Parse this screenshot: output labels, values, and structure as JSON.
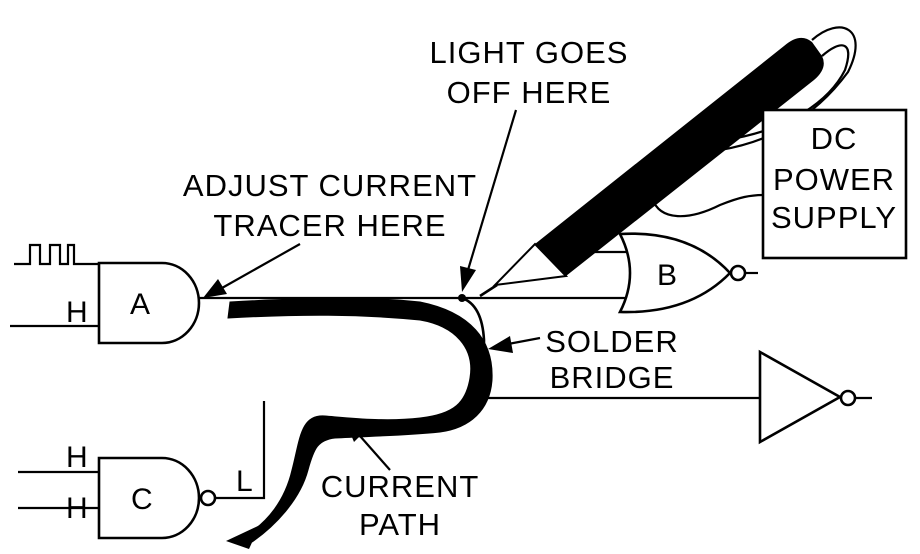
{
  "diagram": {
    "callouts": {
      "light_goes_off_here": [
        "LIGHT GOES",
        "OFF HERE"
      ],
      "adjust_current_tracer_here": [
        "ADJUST CURRENT",
        "TRACER HERE"
      ],
      "dc_power_supply": [
        "DC",
        "POWER",
        "SUPPLY"
      ],
      "solder_bridge": [
        "SOLDER",
        "BRIDGE"
      ],
      "current_path": [
        "CURRENT",
        "PATH"
      ]
    },
    "gates": {
      "a": "A",
      "b": "B",
      "c": "C"
    },
    "logic_levels": {
      "gate_a_input": "H",
      "gate_c_input_1": "H",
      "gate_c_input_2": "H",
      "gate_c_output": "L"
    }
  }
}
